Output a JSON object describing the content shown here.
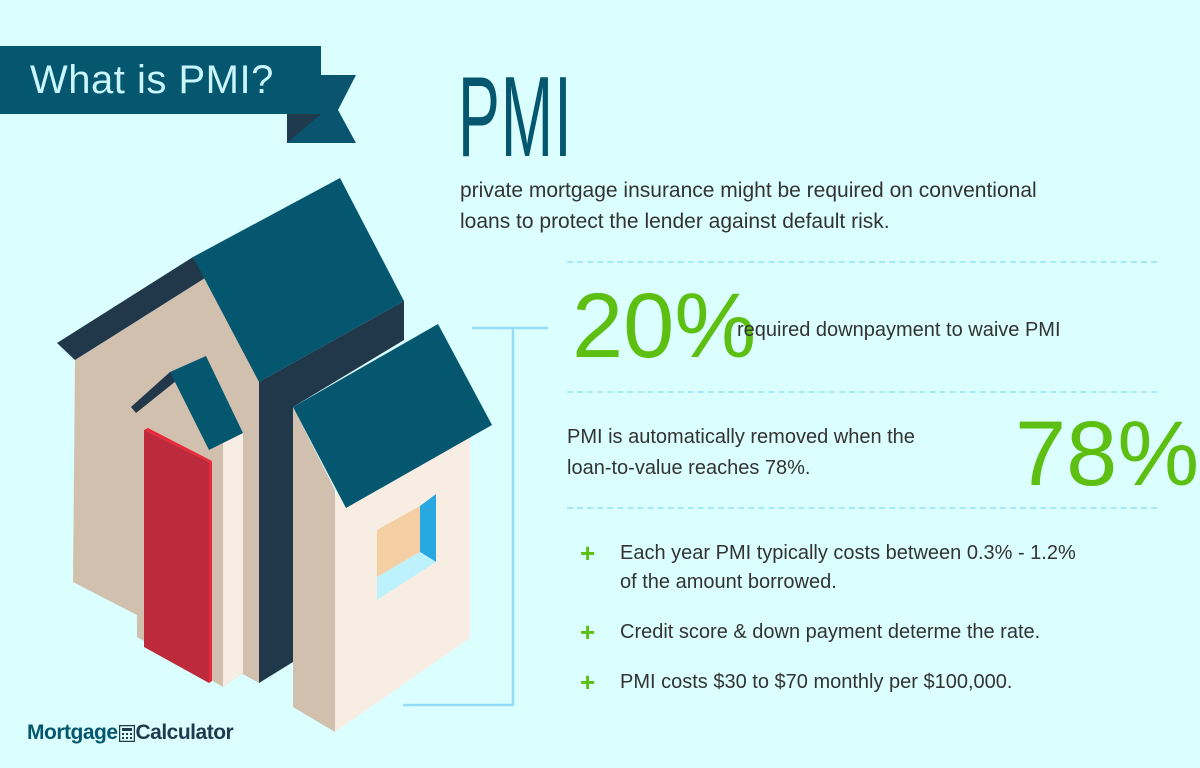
{
  "banner": {
    "title": "What is PMI?"
  },
  "heading": {
    "title": "PMI"
  },
  "description": {
    "lines": [
      "private mortgage insurance might be required on conventional",
      "loans to protect the lender against default risk."
    ]
  },
  "stats": [
    {
      "value": "20%",
      "text_lines": [
        "required downpayment to waive PMI"
      ]
    },
    {
      "value": "78%",
      "text_lines": [
        "PMI is automatically removed when the",
        "loan-to-value reaches 78%."
      ]
    }
  ],
  "bullets": [
    {
      "icon": "plus-icon",
      "lines": [
        "Each year PMI typically costs between 0.3% - 1.2%",
        "of the amount borrowed."
      ]
    },
    {
      "icon": "plus-icon",
      "lines": [
        "Credit score & down payment determe the rate."
      ]
    },
    {
      "icon": "plus-icon",
      "lines": [
        "PMI costs $30 to $70 monthly per $100,000."
      ]
    }
  ],
  "bullet_symbol": "+",
  "logo": {
    "part1": "Mortgage",
    "icon": "calculator-icon",
    "part2": "Calculator"
  },
  "colors": {
    "background": "#dbfefe",
    "brand_teal": "#05566f",
    "accent_green": "#5cbf12",
    "door_red": "#bc2a3b",
    "text": "#333333"
  }
}
